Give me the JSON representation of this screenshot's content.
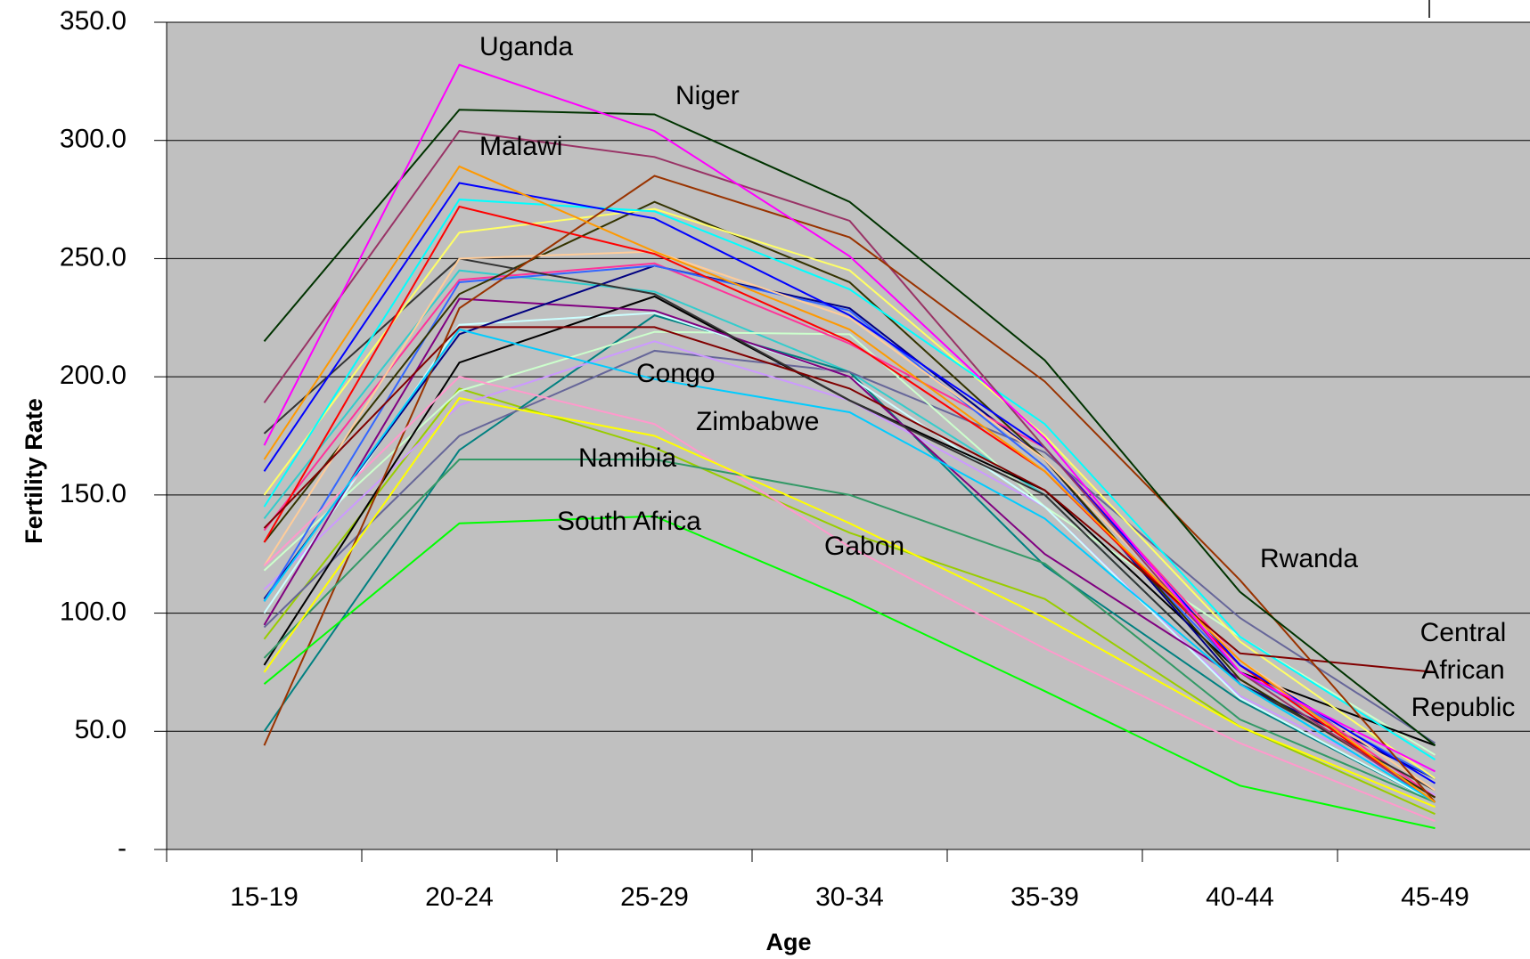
{
  "chart_data": {
    "type": "line",
    "x_label": "Age",
    "y_label": "Fertility Rate",
    "categories": [
      "15-19",
      "20-24",
      "25-29",
      "30-34",
      "35-39",
      "40-44",
      "45-49"
    ],
    "ylim": [
      0,
      350
    ],
    "yticks": [
      {
        "value": 0,
        "label": "-"
      },
      {
        "value": 50,
        "label": "50.0"
      },
      {
        "value": 100,
        "label": "100.0"
      },
      {
        "value": 150,
        "label": "150.0"
      },
      {
        "value": 200,
        "label": "200.0"
      },
      {
        "value": 250,
        "label": "250.0"
      },
      {
        "value": 300,
        "label": "300.0"
      },
      {
        "value": 350,
        "label": "350.0"
      }
    ],
    "grid": true,
    "background": "#c0c0c0",
    "series": [
      {
        "name": "Uganda",
        "color": "#ff00ff",
        "values": [
          171,
          332,
          304,
          251,
          174,
          75,
          33
        ]
      },
      {
        "name": "Niger",
        "color": "#003300",
        "values": [
          215,
          313,
          311,
          274,
          207,
          109,
          44
        ]
      },
      {
        "name": "Malawi",
        "color": "#ff9900",
        "values": [
          165,
          289,
          253,
          220,
          160,
          80,
          20
        ]
      },
      {
        "name": "Congo",
        "color": "#00ccff",
        "values": [
          105,
          220,
          199,
          185,
          140,
          70,
          20
        ]
      },
      {
        "name": "Zimbabwe",
        "color": "#ffff00",
        "values": [
          75,
          191,
          175,
          138,
          98,
          52,
          18
        ]
      },
      {
        "name": "Namibia",
        "color": "#339966",
        "values": [
          81,
          165,
          165,
          150,
          121,
          55,
          20
        ]
      },
      {
        "name": "South Africa",
        "color": "#00ff00",
        "values": [
          70,
          138,
          141,
          106,
          67,
          27,
          9
        ]
      },
      {
        "name": "Gabon",
        "color": "#ff99cc",
        "values": [
          120,
          200,
          180,
          128,
          85,
          45,
          12
        ]
      },
      {
        "name": "Rwanda",
        "color": "#993300",
        "values": [
          44,
          229,
          285,
          259,
          198,
          114,
          20
        ]
      },
      {
        "name": "Central African Republic",
        "color": "#800000",
        "values": [
          136,
          221,
          221,
          195,
          152,
          83,
          75
        ]
      },
      {
        "color": "#993366",
        "values": [
          189,
          304,
          293,
          266,
          170,
          75,
          20
        ]
      },
      {
        "color": "#0000ff",
        "values": [
          160,
          282,
          267,
          226,
          170,
          78,
          28
        ]
      },
      {
        "color": "#00ffff",
        "values": [
          145,
          275,
          270,
          237,
          180,
          90,
          38
        ]
      },
      {
        "color": "#ff0000",
        "values": [
          130,
          272,
          252,
          215,
          160,
          78,
          20
        ]
      },
      {
        "color": "#ffff66",
        "values": [
          150,
          261,
          271,
          245,
          175,
          88,
          30
        ]
      },
      {
        "color": "#ffcc99",
        "values": [
          120,
          250,
          253,
          225,
          165,
          80,
          25
        ]
      },
      {
        "color": "#333333",
        "values": [
          176,
          250,
          235,
          190,
          150,
          70,
          25
        ]
      },
      {
        "color": "#333300",
        "values": [
          130,
          235,
          274,
          240,
          165,
          72,
          22
        ]
      },
      {
        "color": "#3366ff",
        "values": [
          105,
          240,
          247,
          228,
          162,
          75,
          30
        ]
      },
      {
        "color": "#ff3399",
        "values": [
          135,
          241,
          248,
          214,
          170,
          80,
          22
        ]
      },
      {
        "color": "#000080",
        "values": [
          106,
          218,
          247,
          229,
          165,
          70,
          30
        ]
      },
      {
        "color": "#800080",
        "values": [
          95,
          233,
          228,
          200,
          125,
          72,
          22
        ]
      },
      {
        "color": "#000000",
        "values": [
          78,
          206,
          234,
          190,
          152,
          75,
          44
        ]
      },
      {
        "color": "#ccffff",
        "values": [
          100,
          222,
          227,
          200,
          145,
          64,
          20
        ]
      },
      {
        "color": "#ccffcc",
        "values": [
          118,
          194,
          219,
          218,
          145,
          90,
          40
        ]
      },
      {
        "color": "#cc99ff",
        "values": [
          110,
          188,
          215,
          190,
          145,
          65,
          23
        ]
      },
      {
        "color": "#666699",
        "values": [
          94,
          175,
          211,
          202,
          168,
          98,
          45
        ]
      },
      {
        "color": "#008080",
        "values": [
          50,
          169,
          226,
          202,
          120,
          63,
          20
        ]
      },
      {
        "color": "#99cc00",
        "values": [
          89,
          195,
          170,
          134,
          106,
          52,
          15
        ]
      },
      {
        "color": "#33cccc",
        "values": [
          140,
          245,
          236,
          202,
          150,
          70,
          20
        ]
      }
    ]
  }
}
